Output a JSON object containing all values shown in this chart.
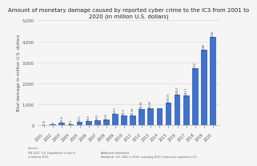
{
  "title": "Amount of monetary damage caused by reported cyber crime to the IC3 from 2001 to\n2020 (in million U.S. dollars)",
  "title_fontsize": 5.0,
  "ylabel": "Total damage in million U.S. dollars",
  "ylabel_fontsize": 4.0,
  "bar_color": "#4472c4",
  "background_color": "#f5f5f5",
  "years": [
    "2001",
    "2002",
    "2003",
    "2004",
    "2005",
    "2006",
    "2007",
    "2008",
    "2009",
    "2010",
    "2011",
    "2012",
    "2013",
    "2014",
    "2015",
    "2016",
    "2017",
    "2018",
    "2019",
    "2020"
  ],
  "values": [
    17.8,
    54,
    125.6,
    68.1,
    183.1,
    198.4,
    239.1,
    264.6,
    559.7,
    485.3,
    481.44,
    781.84,
    800.49,
    800.49,
    1070.71,
    1450.7,
    1415.7,
    2710,
    3586,
    4200
  ],
  "ylim": [
    0,
    5000
  ],
  "yticks": [
    0,
    1000,
    2000,
    3000,
    4000,
    5000
  ],
  "ytick_labels": [
    "0",
    "1,000",
    "2,000",
    "3,000",
    "4,000",
    "5,000"
  ],
  "value_labels": [
    "17.8",
    "54",
    "125.6",
    "68.1",
    "183.1",
    "198.4",
    "239.1",
    "264.6",
    "559.7",
    "485.3",
    "481.44",
    "781.84",
    "800.49",
    "",
    "1,070.71",
    "1,450.7",
    "1,415.7",
    "2,710",
    "3,586",
    "4,200"
  ],
  "sources_text": "Sources:\nFBI 2021; U.S. Department of Justice\nio Statista 2021",
  "additional_text": "Additional information:\nWorldwide: IC3, 2001 to 2020, excluding 2010; Cybercrime reported to IC3"
}
